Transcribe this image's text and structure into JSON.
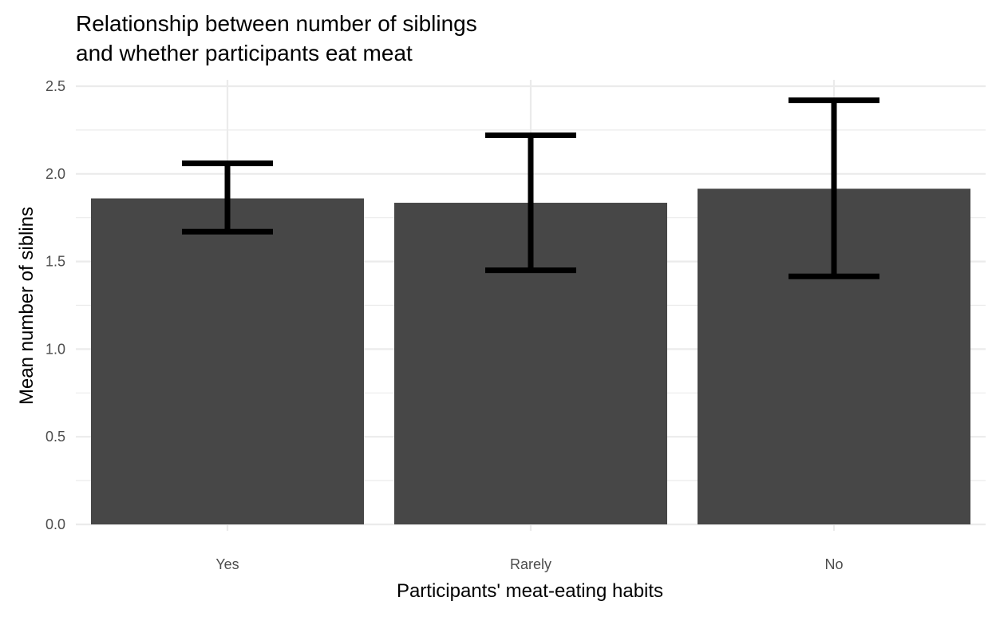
{
  "chart_data": {
    "type": "bar",
    "title": [
      "Relationship between number of siblings",
      "and whether participants eat meat"
    ],
    "xlabel": "Participants' meat-eating habits",
    "ylabel": "Mean number of siblins",
    "categories": [
      "Yes",
      "Rarely",
      "No"
    ],
    "values": [
      1.86,
      1.835,
      1.915
    ],
    "error_lower": [
      1.67,
      1.45,
      1.415
    ],
    "error_upper": [
      2.06,
      2.22,
      2.42
    ],
    "ylim": [
      0,
      2.5
    ],
    "yticks": [
      0,
      0.5,
      1,
      1.5,
      2,
      2.5
    ],
    "ytick_labels": [
      "0.0",
      "0.5",
      "1.0",
      "1.5",
      "2.0",
      "2.5"
    ],
    "grid": true,
    "colors": {
      "bar": "#474747",
      "errorbar": "#000000",
      "grid": "#ebebeb",
      "text": "#000000",
      "tick": "#4d4d4d"
    }
  }
}
